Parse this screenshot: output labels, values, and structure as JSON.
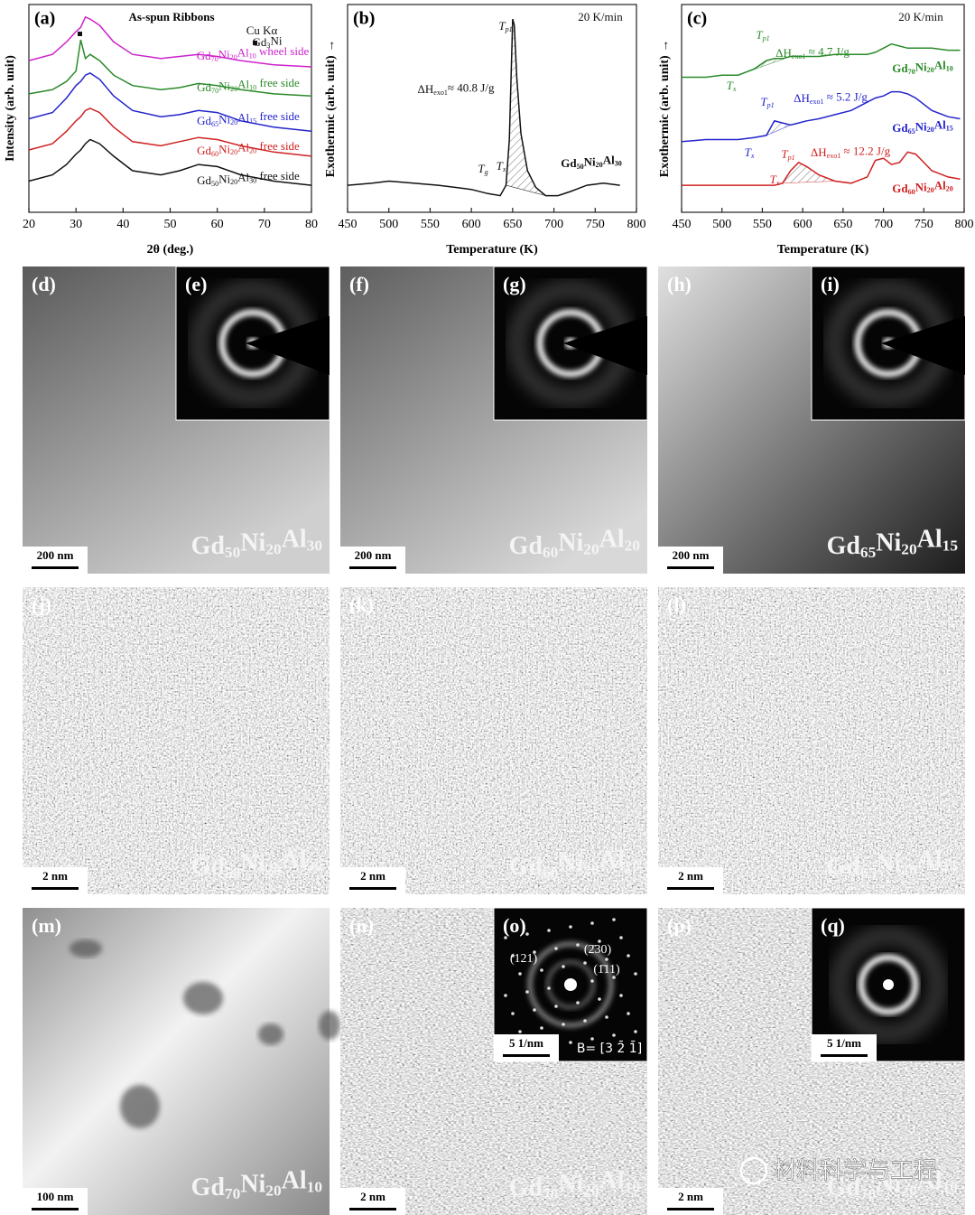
{
  "chart_data": [
    {
      "type": "line",
      "panel_label": "(a)",
      "title": "As-spun Ribbons",
      "x_label": "2θ (deg.)",
      "y_label": "Intensity (arb. unit)",
      "annotations": [
        "Cu Kα",
        "Gd3Ni"
      ],
      "xlim": [
        20,
        80
      ],
      "xticks": [
        20,
        30,
        40,
        50,
        60,
        70,
        80
      ],
      "ylim": [
        0,
        10
      ],
      "x": [
        20,
        25,
        28,
        30,
        31,
        32,
        33,
        35,
        38,
        42,
        48,
        52,
        56,
        60,
        65,
        72,
        80
      ],
      "series": [
        {
          "name": "Gd70Ni20Al10 wheel side",
          "color": "#cc22cc",
          "values": [
            7.3,
            7.6,
            8.2,
            8.7,
            8.9,
            9.4,
            9.3,
            9.0,
            8.2,
            7.6,
            7.4,
            7.5,
            7.6,
            7.5,
            7.3,
            7.1,
            7.0
          ]
        },
        {
          "name": "Gd70Ni20Al10 free side",
          "color": "#2a8a2a",
          "values": [
            5.7,
            5.9,
            6.3,
            6.8,
            8.3,
            7.4,
            7.6,
            7.3,
            6.6,
            6.1,
            5.9,
            6.0,
            6.2,
            6.1,
            5.9,
            5.7,
            5.6
          ]
        },
        {
          "name": "Gd65Ni20Al15 free side",
          "color": "#2424cc",
          "values": [
            4.5,
            4.8,
            5.5,
            6.1,
            6.3,
            6.6,
            6.7,
            6.4,
            5.6,
            4.9,
            4.6,
            4.7,
            4.9,
            4.8,
            4.4,
            4.1,
            3.9
          ]
        },
        {
          "name": "Gd60Ni20Al20 free side",
          "color": "#d02020",
          "values": [
            3.0,
            3.3,
            3.9,
            4.4,
            4.6,
            4.9,
            5.0,
            4.8,
            4.1,
            3.4,
            3.2,
            3.4,
            3.6,
            3.5,
            3.2,
            2.9,
            2.7
          ]
        },
        {
          "name": "Gd50Ni20Al30 free side",
          "color": "#111111",
          "values": [
            1.5,
            1.8,
            2.3,
            2.8,
            3.0,
            3.3,
            3.5,
            3.3,
            2.7,
            2.0,
            1.8,
            2.0,
            2.3,
            2.2,
            1.8,
            1.5,
            1.3
          ]
        }
      ]
    },
    {
      "type": "line",
      "panel_label": "(b)",
      "x_label": "Temperature (K)",
      "y_label": "Exothermic (arb. unit) →",
      "annotations": [
        "20 K/min",
        "Tp1",
        "ΔHexo1≈ 40.8 J/g",
        "Tg",
        "Tx"
      ],
      "xlim": [
        450,
        800
      ],
      "xticks": [
        450,
        500,
        550,
        600,
        650,
        700,
        750,
        800
      ],
      "ylim": [
        0,
        10
      ],
      "x": [
        450,
        480,
        500,
        530,
        560,
        600,
        620,
        635,
        642,
        646,
        650,
        652,
        655,
        660,
        668,
        678,
        690,
        705,
        720,
        740,
        760,
        780
      ],
      "series": [
        {
          "name": "Gd50Ni20Al30",
          "color": "#111111",
          "values": [
            1.3,
            1.4,
            1.5,
            1.4,
            1.3,
            1.1,
            0.9,
            0.8,
            1.3,
            3.5,
            9.3,
            9.0,
            6.5,
            3.8,
            2.0,
            1.2,
            0.8,
            0.8,
            1.0,
            1.3,
            1.4,
            1.3
          ]
        }
      ]
    },
    {
      "type": "line",
      "panel_label": "(c)",
      "x_label": "Temperature (K)",
      "y_label": "Exothermic (arb. unit) →",
      "annotations": [
        "20 K/min",
        "Tp1",
        "ΔHexo1 ≈ 4.7 J/g",
        "Tx",
        "Tp1",
        "ΔHexo1 ≈ 5.2 J/g",
        "Tx",
        "Tp1",
        "ΔHexo1 ≈ 12.2 J/g",
        "Tx"
      ],
      "xlim": [
        450,
        800
      ],
      "xticks": [
        450,
        500,
        550,
        600,
        650,
        700,
        750,
        800
      ],
      "ylim": [
        0,
        10
      ],
      "x": [
        450,
        480,
        500,
        520,
        540,
        555,
        565,
        575,
        585,
        595,
        605,
        620,
        640,
        660,
        680,
        690,
        700,
        710,
        720,
        730,
        740,
        760,
        780,
        795
      ],
      "series": [
        {
          "name": "Gd70Ni20Al10",
          "color": "#2a8a2a",
          "values": [
            6.5,
            6.5,
            6.6,
            6.6,
            6.9,
            7.3,
            7.4,
            7.4,
            7.5,
            7.5,
            7.5,
            7.5,
            7.6,
            7.6,
            7.6,
            7.7,
            7.9,
            8.1,
            8.0,
            7.9,
            7.9,
            7.9,
            7.8,
            7.8
          ]
        },
        {
          "name": "Gd65Ni20Al15",
          "color": "#2424cc",
          "values": [
            3.4,
            3.5,
            3.5,
            3.5,
            3.6,
            3.7,
            4.4,
            4.3,
            4.2,
            4.3,
            4.4,
            4.5,
            4.7,
            4.9,
            5.3,
            5.5,
            5.6,
            5.8,
            5.8,
            5.7,
            5.5,
            4.9,
            4.6,
            4.5
          ]
        },
        {
          "name": "Gd60Ni20Al20",
          "color": "#d02020",
          "values": [
            1.3,
            1.3,
            1.3,
            1.3,
            1.3,
            1.3,
            1.3,
            1.4,
            2.0,
            2.4,
            2.2,
            1.8,
            1.5,
            1.4,
            1.7,
            2.5,
            2.6,
            2.3,
            2.4,
            2.9,
            2.8,
            2.0,
            1.7,
            1.6
          ]
        }
      ]
    }
  ],
  "panels": [
    {
      "label": "(d)",
      "scale_bar": "200 nm",
      "composition": "Gd50Ni20Al30",
      "inset": {
        "label": "(e)"
      }
    },
    {
      "label": "(f)",
      "scale_bar": "200 nm",
      "composition": "Gd60Ni20Al20",
      "inset": {
        "label": "(g)"
      }
    },
    {
      "label": "(h)",
      "scale_bar": "200 nm",
      "composition": "Gd65Ni20Al15",
      "inset": {
        "label": "(i)"
      }
    },
    {
      "label": "(j)",
      "scale_bar": "2 nm",
      "composition": "Gd50Ni20Al30"
    },
    {
      "label": "(k)",
      "scale_bar": "2 nm",
      "composition": "Gd60Ni20Al20"
    },
    {
      "label": "(l)",
      "scale_bar": "2 nm",
      "composition": "Gd65Ni20Al15"
    },
    {
      "label": "(m)",
      "scale_bar": "100 nm",
      "composition": "Gd70Ni20Al10"
    },
    {
      "label": "(n)",
      "scale_bar": "2 nm",
      "composition": "Gd70Ni20Al10",
      "inset": {
        "label": "(o)",
        "scale_bar": "5 1/nm",
        "spots": [
          "(121)",
          "(2̄30)",
          "(1̄11)"
        ],
        "zone_axis": "B= [3 2̄ 1̄]"
      }
    },
    {
      "label": "(p)",
      "scale_bar": "2 nm",
      "composition": "Gd70Ni20Al10",
      "inset": {
        "label": "(q)",
        "scale_bar": "5 1/nm"
      }
    }
  ],
  "watermark": "材料科学与工程"
}
